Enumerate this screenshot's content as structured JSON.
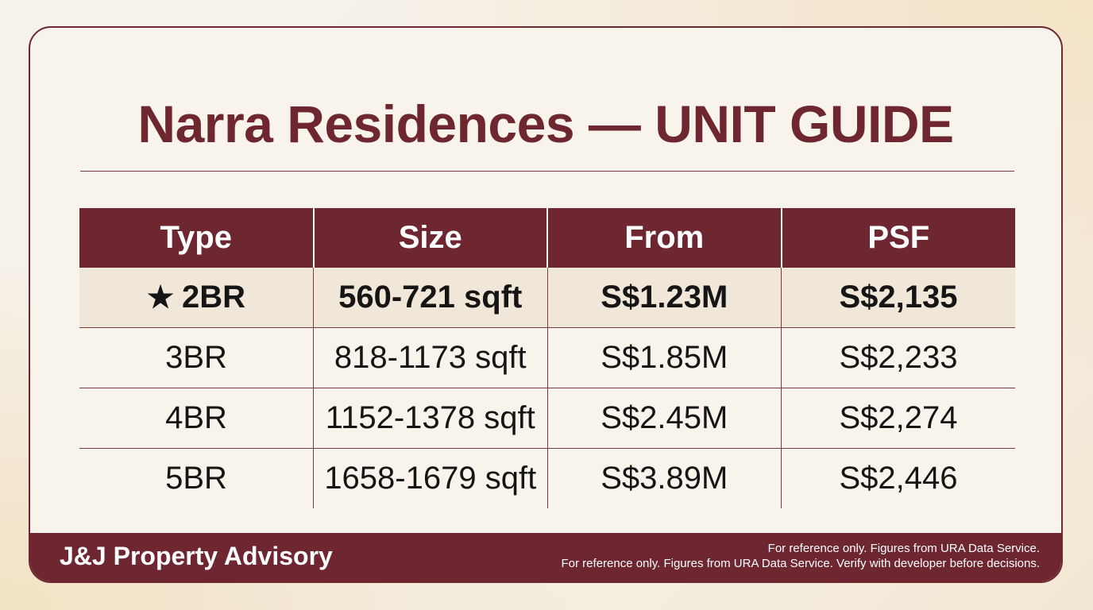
{
  "title": "Narra Residences — UNIT GUIDE",
  "table": {
    "headers": [
      "Type",
      "Size",
      "From",
      "PSF"
    ],
    "rows": [
      {
        "type": "2BR",
        "size": "560-721 sqft",
        "from": "S$1.23M",
        "psf": "S$2,135",
        "highlighted": true
      },
      {
        "type": "3BR",
        "size": "818-1173 sqft",
        "from": "S$1.85M",
        "psf": "S$2,233",
        "highlighted": false
      },
      {
        "type": "4BR",
        "size": "1152-1378 sqft",
        "from": "S$2.45M",
        "psf": "S$2,274",
        "highlighted": false
      },
      {
        "type": "5BR",
        "size": "1658-1679 sqft",
        "from": "S$3.89M",
        "psf": "S$2,446",
        "highlighted": false
      }
    ],
    "highlight_icon": "star-icon",
    "highlight_glyph": "★"
  },
  "footer": {
    "brand": "J&J Property Advisory",
    "disclaimer_line_1": "For reference only. Figures from URA Data Service.",
    "disclaimer_line_2": "For reference only. Figures from URA Data Service. Verify with developer before decisions."
  },
  "colors": {
    "accent": "#6e2630",
    "highlight_row": "#f0e7d8",
    "card_background": "#f8f4ec",
    "text": "#151515"
  }
}
